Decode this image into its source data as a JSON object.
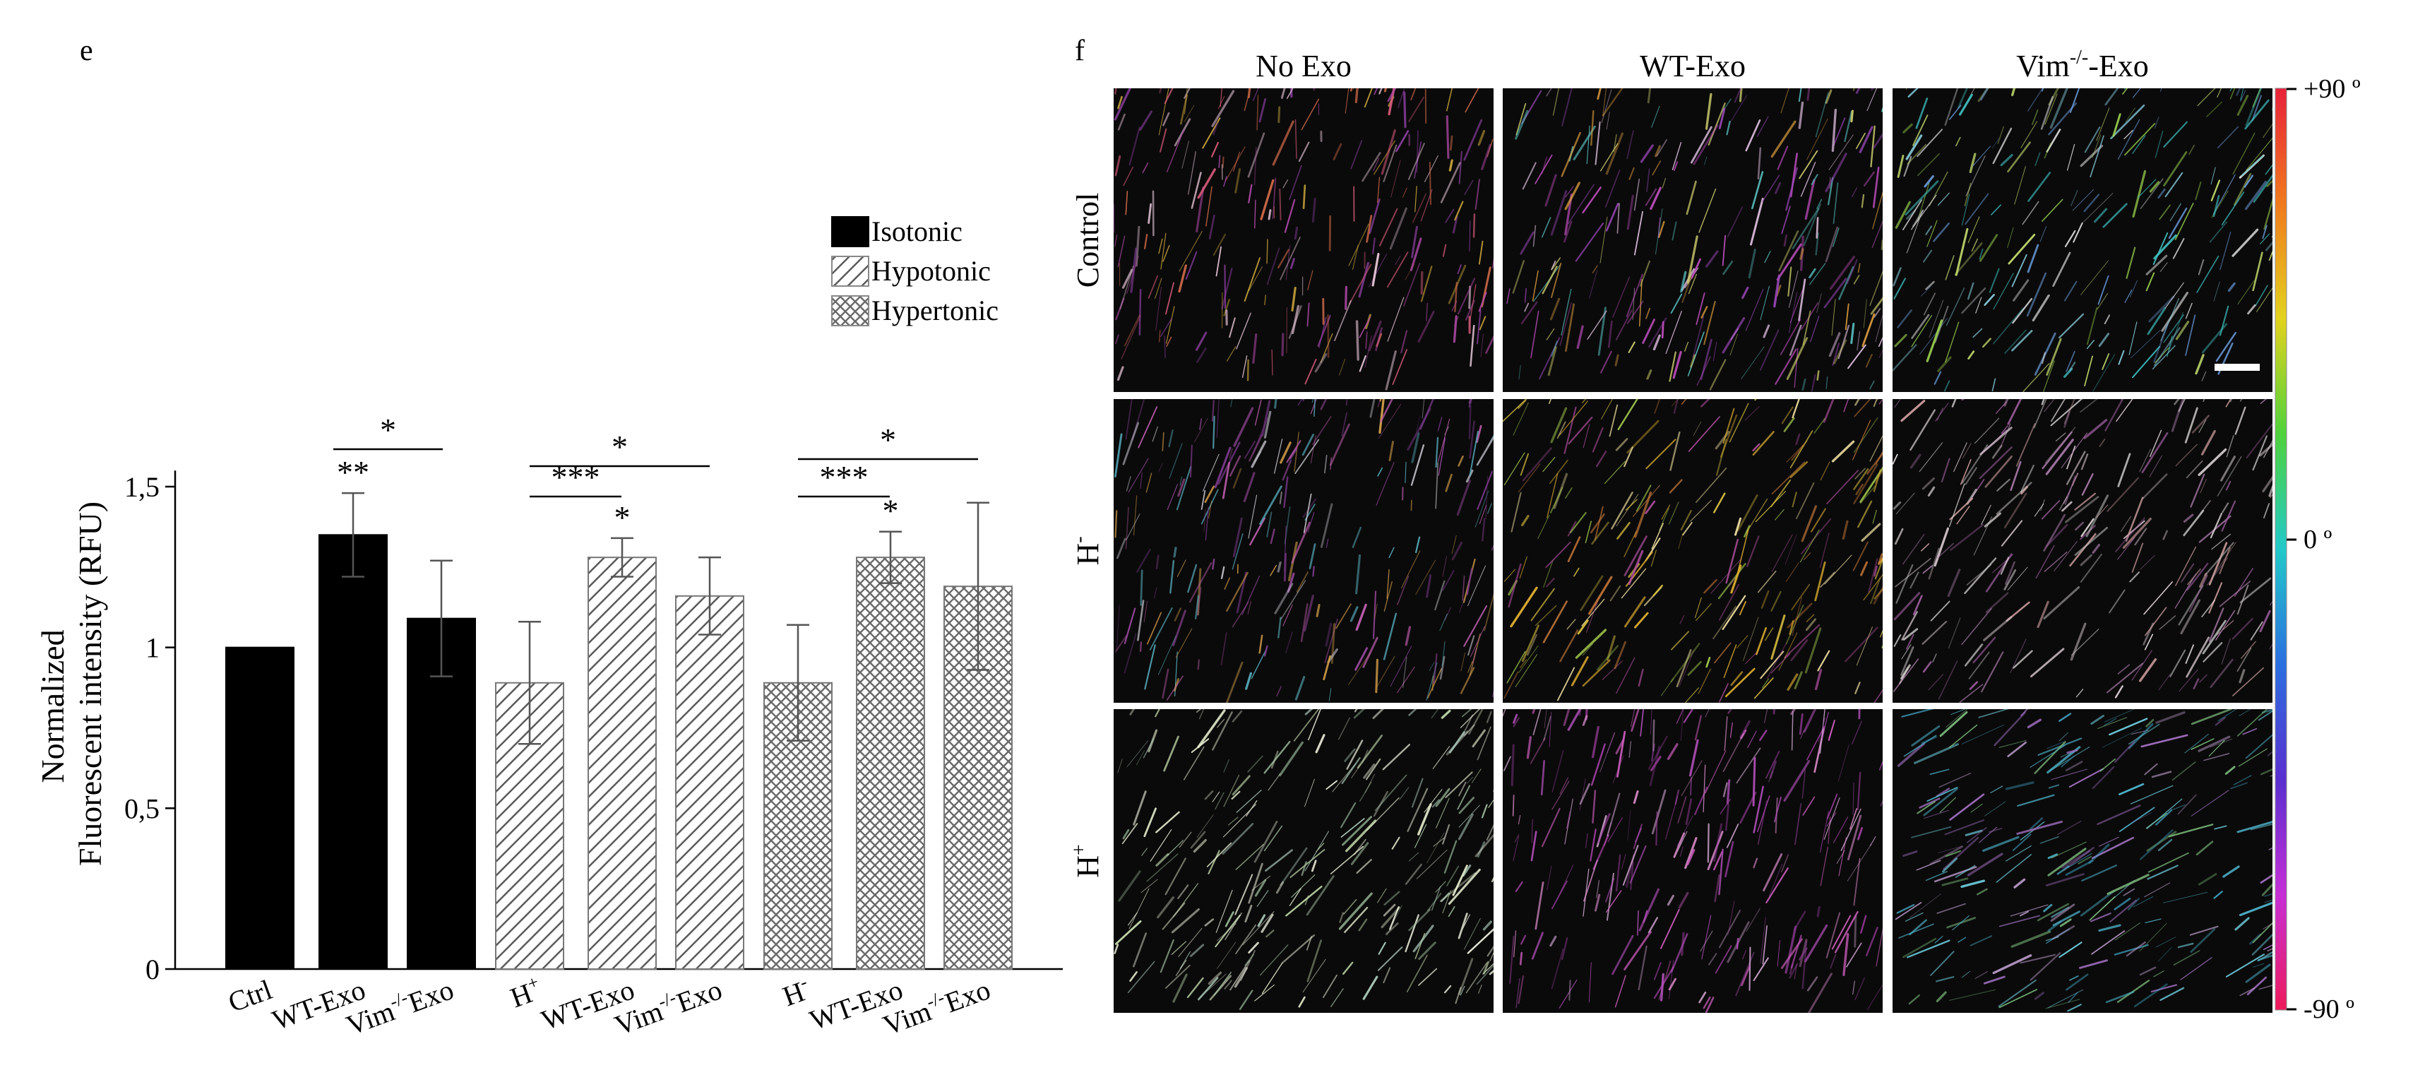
{
  "panels": {
    "left_letter": "e",
    "right_letter": "f"
  },
  "chart_data": {
    "type": "bar",
    "title": "",
    "ylabel_line1": "Normalized",
    "ylabel_line2": "Fluorescent intensity (RFU)",
    "xlabel": "",
    "ylim": [
      0,
      1.55
    ],
    "yticks": [
      {
        "value": 0,
        "label": "0"
      },
      {
        "value": 0.5,
        "label": "0,5"
      },
      {
        "value": 1,
        "label": "1"
      },
      {
        "value": 1.5,
        "label": "1,5"
      }
    ],
    "legend_position": "top-right",
    "legend": [
      {
        "name": "Isotonic",
        "pattern": "solid"
      },
      {
        "name": "Hypotonic",
        "pattern": "diagonal"
      },
      {
        "name": "Hypertonic",
        "pattern": "crosshatch"
      }
    ],
    "bars": [
      {
        "label": "Ctrl",
        "label_sup": "",
        "label_suffix": "",
        "value": 1.0,
        "error": 0.0,
        "group": "Isotonic",
        "star": ""
      },
      {
        "label": "WT-Exo",
        "label_sup": "",
        "label_suffix": "",
        "value": 1.35,
        "error": 0.13,
        "group": "Isotonic",
        "star": "**"
      },
      {
        "label": "Vim",
        "label_sup": "-/-",
        "label_suffix": "Exo",
        "value": 1.09,
        "error": 0.18,
        "group": "Isotonic",
        "star": ""
      },
      {
        "label": "H",
        "label_sup": "+",
        "label_suffix": "",
        "value": 0.89,
        "error": 0.19,
        "group": "Hypotonic",
        "star": ""
      },
      {
        "label": "WT-Exo",
        "label_sup": "",
        "label_suffix": "",
        "value": 1.28,
        "error": 0.06,
        "group": "Hypotonic",
        "star": "*"
      },
      {
        "label": "Vim",
        "label_sup": "-/-",
        "label_suffix": "Exo",
        "value": 1.16,
        "error": 0.12,
        "group": "Hypotonic",
        "star": ""
      },
      {
        "label": "H",
        "label_sup": "-",
        "label_suffix": "",
        "value": 0.89,
        "error": 0.18,
        "group": "Hypertonic",
        "star": ""
      },
      {
        "label": "WT-Exo",
        "label_sup": "",
        "label_suffix": "",
        "value": 1.28,
        "error": 0.08,
        "group": "Hypertonic",
        "star": "*"
      },
      {
        "label": "Vim",
        "label_sup": "-/-",
        "label_suffix": "Exo",
        "value": 1.19,
        "error": 0.26,
        "group": "Hypertonic",
        "star": ""
      }
    ],
    "comparisons": [
      {
        "from": 1,
        "to": 2,
        "label": "*"
      },
      {
        "from": 3,
        "to": 5,
        "label": "*"
      },
      {
        "from": 3,
        "to": 4,
        "label": "***"
      },
      {
        "from": 6,
        "to": 8,
        "label": "*"
      },
      {
        "from": 6,
        "to": 7,
        "label": "***"
      }
    ]
  },
  "image_grid": {
    "columns": [
      {
        "text": "No Exo",
        "sup": "",
        "suffix": ""
      },
      {
        "text": "WT-Exo",
        "sup": "",
        "suffix": ""
      },
      {
        "text": "Vim",
        "sup": "-/-",
        "suffix": "-Exo"
      }
    ],
    "rows": [
      {
        "text": "Control",
        "sup": ""
      },
      {
        "text": "H",
        "sup": "-"
      },
      {
        "text": "H",
        "sup": "+"
      }
    ]
  },
  "colorbar": {
    "top_label": "+90 º",
    "mid_label": "0 º",
    "bottom_label": "-90 º",
    "stops": [
      "#e8213a",
      "#f07a1e",
      "#e3d21e",
      "#4fd23c",
      "#22c9c9",
      "#2a6fe0",
      "#5a2fd0",
      "#c62fd6",
      "#ee1a5a"
    ]
  }
}
